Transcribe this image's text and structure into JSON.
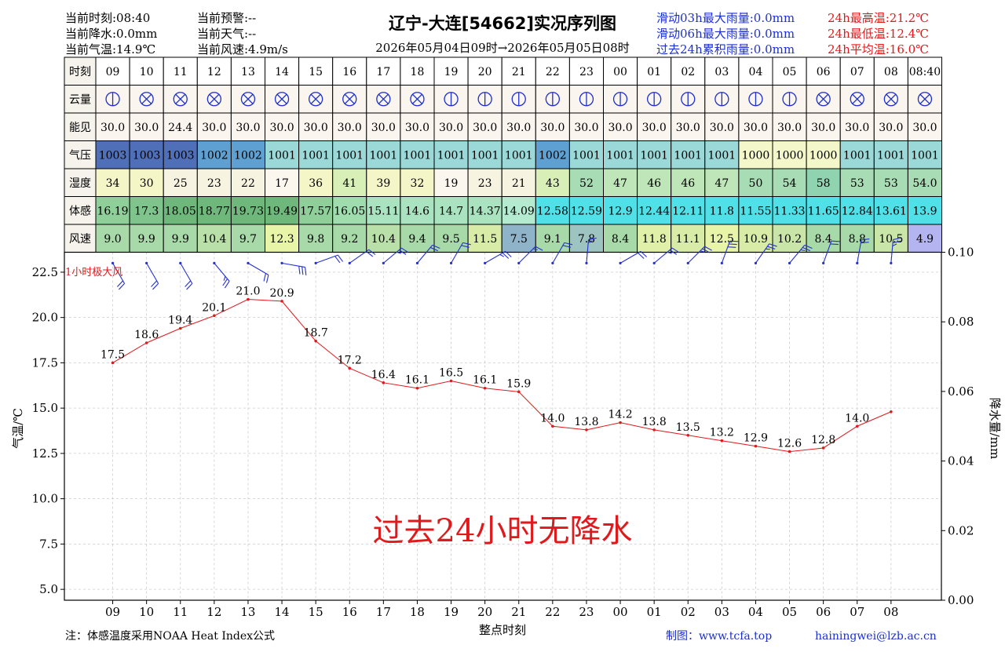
{
  "header": {
    "left": [
      {
        "label": "当前时刻:08:40"
      },
      {
        "label": "当前降水:0.0mm"
      },
      {
        "label": "当前气温:14.9℃"
      }
    ],
    "mid": [
      {
        "label": "当前预警:--"
      },
      {
        "label": "当前天气:--"
      },
      {
        "label": "当前风速:4.9m/s"
      }
    ],
    "title": "辽宁-大连[54662]实况序列图",
    "subtitle": "2026年05月04日09时→2026年05月05日08时",
    "rain": [
      {
        "label": "滑动03h最大雨量:0.0mm"
      },
      {
        "label": "滑动06h最大雨量:0.0mm"
      },
      {
        "label": "过去24h累积雨量:0.0mm"
      }
    ],
    "temp_stats": [
      {
        "label": "24h最高温:21.2℃"
      },
      {
        "label": "24h最低温:12.4℃"
      },
      {
        "label": "24h平均温:16.0℃"
      }
    ]
  },
  "table": {
    "row_labels": [
      "时刻",
      "云量",
      "能见",
      "气压",
      "湿度",
      "体感",
      "风速"
    ],
    "hours": [
      "09",
      "10",
      "11",
      "12",
      "13",
      "14",
      "15",
      "16",
      "17",
      "18",
      "19",
      "20",
      "21",
      "22",
      "23",
      "00",
      "01",
      "02",
      "03",
      "04",
      "05",
      "06",
      "07",
      "08",
      "08:40"
    ],
    "visibility": [
      "30.0",
      "30.0",
      "24.4",
      "30.0",
      "30.0",
      "30.0",
      "30.0",
      "30.0",
      "30.0",
      "30.0",
      "30.0",
      "30.0",
      "30.0",
      "30.0",
      "30.0",
      "30.0",
      "30.0",
      "30.0",
      "30.0",
      "30.0",
      "30.0",
      "30.0",
      "30.0",
      "30.0",
      "30.0"
    ],
    "pressure": [
      "1003",
      "1003",
      "1003",
      "1002",
      "1002",
      "1001",
      "1001",
      "1001",
      "1001",
      "1001",
      "1001",
      "1001",
      "1001",
      "1002",
      "1001",
      "1001",
      "1001",
      "1001",
      "1001",
      "1000",
      "1000",
      "1000",
      "1001",
      "1001",
      "1001"
    ],
    "humidity": [
      "34",
      "30",
      "25",
      "23",
      "22",
      "17",
      "36",
      "41",
      "39",
      "32",
      "19",
      "23",
      "21",
      "43",
      "52",
      "47",
      "46",
      "46",
      "47",
      "50",
      "54",
      "58",
      "53",
      "53",
      "54.0"
    ],
    "feels_like": [
      "16.19",
      "17.3",
      "18.05",
      "18.77",
      "19.73",
      "19.49",
      "17.57",
      "16.05",
      "15.11",
      "14.6",
      "14.7",
      "14.37",
      "14.09",
      "12.58",
      "12.59",
      "12.9",
      "12.44",
      "12.11",
      "11.8",
      "11.55",
      "11.33",
      "11.65",
      "12.84",
      "13.61",
      "13.9"
    ],
    "wind_speed": [
      "9.0",
      "9.9",
      "9.9",
      "10.4",
      "9.7",
      "12.3",
      "9.8",
      "9.2",
      "10.4",
      "9.4",
      "9.5",
      "11.5",
      "7.5",
      "9.1",
      "7.8",
      "8.4",
      "11.8",
      "11.1",
      "12.5",
      "10.9",
      "10.2",
      "8.4",
      "8.8",
      "10.5",
      "4.9"
    ],
    "pressure_colors": [
      "#4f6fb8",
      "#4f6fb8",
      "#4f6fb8",
      "#5fa0d2",
      "#5fa0d2",
      "#9ad9d8",
      "#9ad9d8",
      "#9ad9d8",
      "#9ad9d8",
      "#9ad9d8",
      "#9ad9d8",
      "#9ad9d8",
      "#9ad9d8",
      "#5fa0d2",
      "#9ad9d8",
      "#9ad9d8",
      "#9ad9d8",
      "#9ad9d8",
      "#9ad9d8",
      "#f3f7c9",
      "#f3f7c9",
      "#f3f7c9",
      "#9ad9d8",
      "#9ad9d8",
      "#9ad9d8"
    ],
    "humidity_colors": [
      "#f5f6c8",
      "#f5f6c8",
      "#f6f4e0",
      "#f6f4e0",
      "#f6f4e0",
      "#fbf7ee",
      "#f5f6c8",
      "#d9efb8",
      "#f5f6c8",
      "#f5f6c8",
      "#fbf7ee",
      "#f6f4e0",
      "#f6f4e0",
      "#d9efb8",
      "#a8dcb4",
      "#bfe6b8",
      "#bfe6b8",
      "#bfe6b8",
      "#bfe6b8",
      "#a8dcb4",
      "#a8dcb4",
      "#8fd3b0",
      "#a8dcb4",
      "#a8dcb4",
      "#a8dcb4"
    ],
    "feels_colors": [
      "#8ecf9a",
      "#7fc48c",
      "#6fb87c",
      "#6fb87c",
      "#6fb87c",
      "#6fb87c",
      "#8ecf9a",
      "#9fdcae",
      "#a9e3c0",
      "#a9e3c0",
      "#a9e3c0",
      "#a9e3c0",
      "#b3ead0",
      "#4fe0e8",
      "#4fe0e8",
      "#4fe0e8",
      "#4fe0e8",
      "#4fe0e8",
      "#4fe0e8",
      "#4fe0e8",
      "#4fe0e8",
      "#4fe0e8",
      "#4fe0e8",
      "#4fe0e8",
      "#4fe0e8"
    ],
    "wind_colors": [
      "#a8d9a8",
      "#a8d9a8",
      "#a8d9a8",
      "#b9e0a8",
      "#a8d9a8",
      "#e8f4a8",
      "#a8d9a8",
      "#a8d9a8",
      "#b9e0a8",
      "#a8d9a8",
      "#a8d9a8",
      "#d8eca8",
      "#8fb3c8",
      "#a8d9a8",
      "#9dc4c0",
      "#a8d9a8",
      "#e1f0a8",
      "#d8eca8",
      "#e8f4a8",
      "#d8eca8",
      "#c9e6a8",
      "#a8d9a8",
      "#a8d9a8",
      "#c9e6a8",
      "#b4b4f0"
    ],
    "cloud_cover": [
      1,
      9,
      9,
      9,
      9,
      9,
      9,
      9,
      9,
      9,
      1,
      1,
      1,
      1,
      1,
      1,
      1,
      1,
      1,
      1,
      1,
      9,
      9,
      9,
      9
    ]
  },
  "chart_data": {
    "type": "line",
    "x": [
      "09",
      "10",
      "11",
      "12",
      "13",
      "14",
      "15",
      "16",
      "17",
      "18",
      "19",
      "20",
      "21",
      "22",
      "23",
      "00",
      "01",
      "02",
      "03",
      "04",
      "05",
      "06",
      "07",
      "08"
    ],
    "series": [
      {
        "values": [
          17.5,
          18.6,
          19.4,
          20.1,
          21.0,
          20.9,
          18.7,
          17.2,
          16.4,
          16.1,
          16.5,
          16.1,
          15.9,
          14.0,
          13.8,
          14.2,
          13.8,
          13.5,
          13.2,
          12.9,
          12.6,
          12.8,
          14.0,
          14.8
        ]
      }
    ],
    "point_labels": [
      "17.5",
      "18.6",
      "19.4",
      "20.1",
      "21.0",
      "20.9",
      "18.7",
      "17.2",
      "16.4",
      "16.1",
      "16.5",
      "16.1",
      "15.9",
      "14.0",
      "13.8",
      "14.2",
      "13.8",
      "13.5",
      "13.2",
      "12.9",
      "12.6",
      "12.8",
      "14.0",
      ""
    ],
    "ylabel": "气温/℃",
    "y2label": "降水量/mm",
    "xlabel": "整点时刻",
    "ylim": [
      4.4,
      23.6
    ],
    "yticks": [
      "5.0",
      "7.5",
      "10.0",
      "12.5",
      "15.0",
      "17.5",
      "20.0",
      "22.5"
    ],
    "y2lim": [
      0,
      0.1
    ],
    "y2ticks": [
      "0.00",
      "0.02",
      "0.04",
      "0.06",
      "0.08",
      "0.10"
    ],
    "grid": true,
    "annotation": "过去24小时无降水",
    "wind_label": "1小时极大风",
    "wind_barbs": [
      {
        "dir": 330,
        "speed": 9.0
      },
      {
        "dir": 330,
        "speed": 9.9
      },
      {
        "dir": 330,
        "speed": 9.9
      },
      {
        "dir": 320,
        "speed": 10.4
      },
      {
        "dir": 300,
        "speed": 9.7
      },
      {
        "dir": 280,
        "speed": 12.3
      },
      {
        "dir": 250,
        "speed": 9.8
      },
      {
        "dir": 235,
        "speed": 9.2
      },
      {
        "dir": 230,
        "speed": 10.4
      },
      {
        "dir": 220,
        "speed": 9.4
      },
      {
        "dir": 210,
        "speed": 9.5
      },
      {
        "dir": 240,
        "speed": 11.5
      },
      {
        "dir": 225,
        "speed": 7.5
      },
      {
        "dir": 210,
        "speed": 9.1
      },
      {
        "dir": 185,
        "speed": 7.8
      },
      {
        "dir": 240,
        "speed": 8.4
      },
      {
        "dir": 230,
        "speed": 11.8
      },
      {
        "dir": 225,
        "speed": 11.1
      },
      {
        "dir": 200,
        "speed": 12.5
      },
      {
        "dir": 215,
        "speed": 10.9
      },
      {
        "dir": 220,
        "speed": 10.2
      },
      {
        "dir": 200,
        "speed": 8.4
      },
      {
        "dir": 190,
        "speed": 8.8
      },
      {
        "dir": 185,
        "speed": 10.5
      }
    ],
    "line_color": "#e0191c",
    "barb_color": "#2430d0"
  },
  "footer": {
    "note": "注：体感温度采用NOAA Heat Index公式",
    "credit": "制图：www.tcfa.top",
    "email": "hainingwei@lzb.ac.cn"
  }
}
